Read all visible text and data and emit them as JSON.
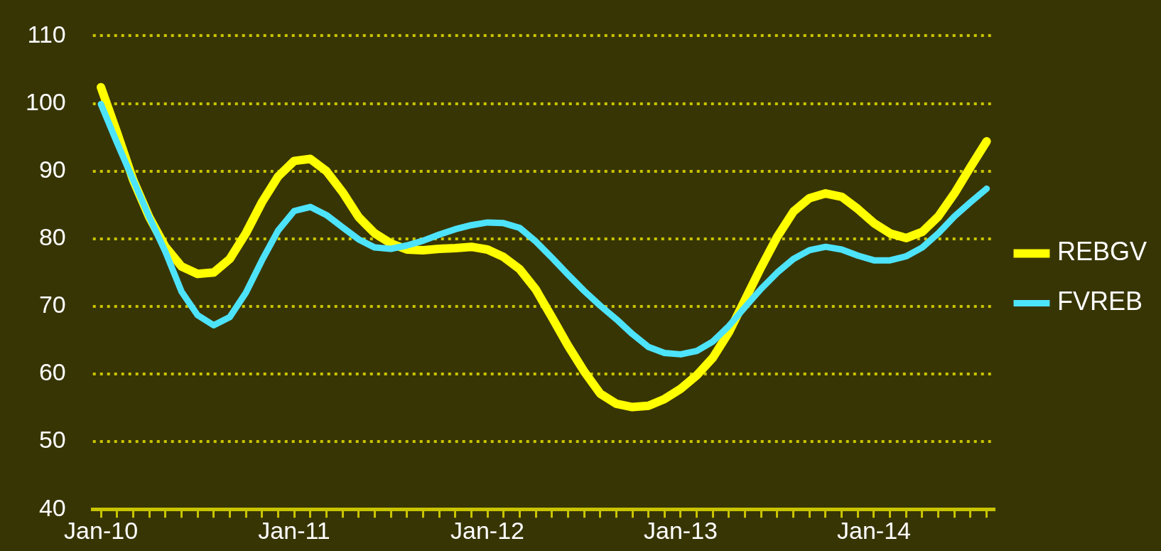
{
  "chart_data": {
    "type": "line",
    "categories": [
      "Jan-10",
      null,
      null,
      null,
      null,
      null,
      null,
      null,
      null,
      null,
      null,
      null,
      "Jan-11",
      null,
      null,
      null,
      null,
      null,
      null,
      null,
      null,
      null,
      null,
      null,
      "Jan-12",
      null,
      null,
      null,
      null,
      null,
      null,
      null,
      null,
      null,
      null,
      null,
      "Jan-13",
      null,
      null,
      null,
      null,
      null,
      null,
      null,
      null,
      null,
      null,
      null,
      "Jan-14",
      null,
      null,
      null,
      null,
      null,
      null,
      null
    ],
    "series": [
      {
        "name": "REBGV",
        "color": "#ffff00",
        "values": [
          102.4,
          95.7,
          88.7,
          83.2,
          78.8,
          75.9,
          74.8,
          75.0,
          77.0,
          80.8,
          85.4,
          89.2,
          91.5,
          91.8,
          90.0,
          86.9,
          83.2,
          80.8,
          79.3,
          78.4,
          78.3,
          78.5,
          78.6,
          78.8,
          78.4,
          77.3,
          75.5,
          72.5,
          68.4,
          64.2,
          60.4,
          57.1,
          55.6,
          55.1,
          55.3,
          56.3,
          57.8,
          59.8,
          62.4,
          66.2,
          71.0,
          75.8,
          80.3,
          84.0,
          86.0,
          86.7,
          86.2,
          84.4,
          82.3,
          80.8,
          80.1,
          81.0,
          83.3,
          86.7,
          90.6,
          94.4
        ]
      },
      {
        "name": "FVREB",
        "color": "#4de3fb",
        "values": [
          99.9,
          94.2,
          88.7,
          83.2,
          78.1,
          72.2,
          68.7,
          67.2,
          68.4,
          72.0,
          76.8,
          81.2,
          84.1,
          84.7,
          83.5,
          81.7,
          79.9,
          78.7,
          78.5,
          79.0,
          79.7,
          80.6,
          81.4,
          82.0,
          82.4,
          82.3,
          81.6,
          79.6,
          77.2,
          74.7,
          72.3,
          70.1,
          68.1,
          65.9,
          64.0,
          63.1,
          62.9,
          63.4,
          64.8,
          67.1,
          69.9,
          72.6,
          75.0,
          77.0,
          78.3,
          78.8,
          78.4,
          77.5,
          76.8,
          76.8,
          77.4,
          78.7,
          80.8,
          83.3,
          85.4,
          87.4
        ]
      }
    ],
    "ylim": [
      40,
      110
    ],
    "yticks": [
      40,
      50,
      60,
      70,
      80,
      90,
      100,
      110
    ],
    "grid": "y",
    "legend": "right",
    "marker": "none",
    "line_style": "solid"
  }
}
